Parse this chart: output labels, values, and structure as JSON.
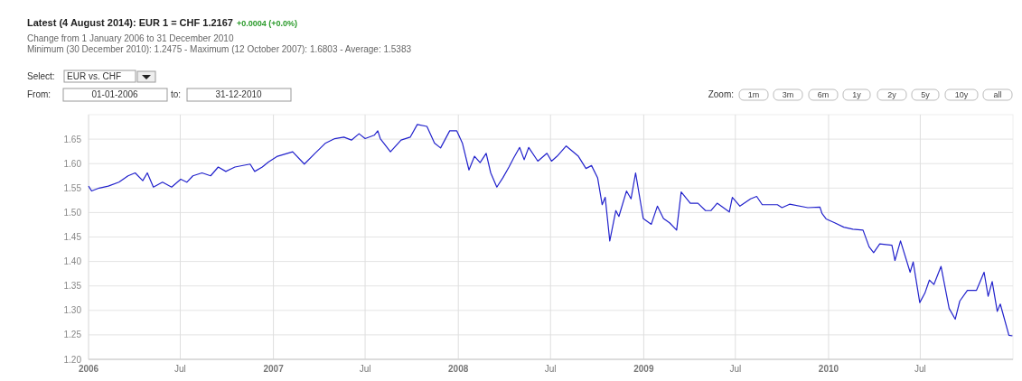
{
  "chart_data": {
    "type": "line",
    "title": "Latest (4 August 2014): EUR 1 = CHF 1.2167",
    "subtitle": "Change from 1 January 2006 to 31 December 2010",
    "annotations": [
      "+0.0004 (+0.0%)",
      "Minimum (30 December 2010): 1.2475 - Maximum (12 October 2007): 1.6803 - Average: 1.5383",
      "Select:",
      "EUR vs. CHF",
      "From:",
      "01-01-2006",
      "to:",
      "31-12-2010",
      "Zoom:",
      "1m",
      "3m",
      "6m",
      "1y",
      "2y",
      "5y",
      "10y",
      "all"
    ],
    "xlim": [
      "2006-01-01",
      "2010-12-31"
    ],
    "xticks": [
      {
        "value": "2006-01-01",
        "label": "2006"
      },
      {
        "value": "2006-07-01",
        "label": "Jul"
      },
      {
        "value": "2007-01-01",
        "label": "2007"
      },
      {
        "value": "2007-07-01",
        "label": "Jul"
      },
      {
        "value": "2008-01-01",
        "label": "2008"
      },
      {
        "value": "2008-07-01",
        "label": "Jul"
      },
      {
        "value": "2009-01-01",
        "label": "2009"
      },
      {
        "value": "2009-07-01",
        "label": "Jul"
      },
      {
        "value": "2010-01-01",
        "label": "2010"
      },
      {
        "value": "2010-07-01",
        "label": "Jul"
      }
    ],
    "ylim": [
      1.2,
      1.7
    ],
    "yticks": [
      {
        "value": 1.2,
        "label": "1.20"
      },
      {
        "value": 1.25,
        "label": "1.25"
      },
      {
        "value": 1.3,
        "label": "1.30"
      },
      {
        "value": 1.35,
        "label": "1.35"
      },
      {
        "value": 1.4,
        "label": "1.40"
      },
      {
        "value": 1.45,
        "label": "1.45"
      },
      {
        "value": 1.5,
        "label": "1.50"
      },
      {
        "value": 1.55,
        "label": "1.55"
      },
      {
        "value": 1.6,
        "label": "1.60"
      },
      {
        "value": 1.65,
        "label": "1.65"
      }
    ],
    "grid": true,
    "marker": "none",
    "line_style": "solid",
    "series": [
      {
        "color": "#2222cc",
        "x": [
          "2006-01-01",
          "2006-01-07",
          "2006-01-22",
          "2006-02-09",
          "2006-03-02",
          "2006-03-20",
          "2006-04-03",
          "2006-04-18",
          "2006-04-27",
          "2006-05-09",
          "2006-05-27",
          "2006-06-14",
          "2006-07-02",
          "2006-07-14",
          "2006-07-26",
          "2006-08-13",
          "2006-08-30",
          "2006-09-14",
          "2006-09-29",
          "2006-10-17",
          "2006-11-16",
          "2006-11-25",
          "2006-12-10",
          "2006-12-22",
          "2007-01-09",
          "2007-02-08",
          "2007-03-03",
          "2007-03-24",
          "2007-04-14",
          "2007-05-02",
          "2007-05-20",
          "2007-06-04",
          "2007-06-19",
          "2007-07-01",
          "2007-07-19",
          "2007-07-26",
          "2007-07-31",
          "2007-08-20",
          "2007-09-10",
          "2007-09-28",
          "2007-10-12",
          "2007-10-31",
          "2007-11-15",
          "2007-11-27",
          "2007-12-15",
          "2007-12-29",
          "2008-01-09",
          "2008-01-22",
          "2008-02-02",
          "2008-02-13",
          "2008-02-25",
          "2008-03-05",
          "2008-03-17",
          "2008-03-29",
          "2008-04-10",
          "2008-04-19",
          "2008-05-01",
          "2008-05-10",
          "2008-05-19",
          "2008-06-06",
          "2008-06-24",
          "2008-07-03",
          "2008-07-14",
          "2008-08-01",
          "2008-08-25",
          "2008-09-09",
          "2008-09-20",
          "2008-10-02",
          "2008-10-11",
          "2008-10-17",
          "2008-10-26",
          "2008-11-07",
          "2008-11-13",
          "2008-11-28",
          "2008-12-07",
          "2008-12-16",
          "2008-12-31",
          "2009-01-16",
          "2009-01-28",
          "2009-02-09",
          "2009-02-21",
          "2009-03-07",
          "2009-03-16",
          "2009-04-03",
          "2009-04-18",
          "2009-05-03",
          "2009-05-14",
          "2009-05-26",
          "2009-06-19",
          "2009-06-25",
          "2009-07-10",
          "2009-07-31",
          "2009-08-12",
          "2009-08-23",
          "2009-09-22",
          "2009-10-01",
          "2009-10-16",
          "2009-11-21",
          "2009-12-15",
          "2009-12-19",
          "2009-12-27",
          "2010-01-13",
          "2010-01-31",
          "2010-02-18",
          "2010-03-10",
          "2010-03-22",
          "2010-03-31",
          "2010-04-12",
          "2010-05-06",
          "2010-05-12",
          "2010-05-23",
          "2010-06-11",
          "2010-06-17",
          "2010-06-30",
          "2010-07-10",
          "2010-07-19",
          "2010-07-28",
          "2010-08-11",
          "2010-08-27",
          "2010-09-08",
          "2010-09-17",
          "2010-10-02",
          "2010-10-20",
          "2010-11-04",
          "2010-11-12",
          "2010-11-20",
          "2010-11-30",
          "2010-12-06",
          "2010-12-23",
          "2010-12-30"
        ],
        "values": [
          1.554,
          1.544,
          1.55,
          1.554,
          1.562,
          1.575,
          1.581,
          1.565,
          1.581,
          1.552,
          1.562,
          1.552,
          1.568,
          1.562,
          1.575,
          1.581,
          1.575,
          1.593,
          1.584,
          1.593,
          1.599,
          1.584,
          1.593,
          1.603,
          1.615,
          1.624,
          1.599,
          1.621,
          1.642,
          1.651,
          1.654,
          1.648,
          1.661,
          1.651,
          1.658,
          1.667,
          1.651,
          1.624,
          1.648,
          1.654,
          1.68,
          1.676,
          1.642,
          1.632,
          1.667,
          1.667,
          1.642,
          1.587,
          1.615,
          1.602,
          1.621,
          1.581,
          1.552,
          1.571,
          1.593,
          1.611,
          1.633,
          1.608,
          1.633,
          1.605,
          1.621,
          1.605,
          1.615,
          1.636,
          1.615,
          1.59,
          1.596,
          1.571,
          1.516,
          1.531,
          1.442,
          1.504,
          1.492,
          1.544,
          1.528,
          1.581,
          1.488,
          1.476,
          1.513,
          1.488,
          1.479,
          1.464,
          1.542,
          1.519,
          1.519,
          1.504,
          1.504,
          1.519,
          1.501,
          1.531,
          1.513,
          1.528,
          1.533,
          1.516,
          1.516,
          1.51,
          1.517,
          1.51,
          1.511,
          1.498,
          1.487,
          1.479,
          1.47,
          1.466,
          1.464,
          1.43,
          1.418,
          1.436,
          1.433,
          1.402,
          1.442,
          1.378,
          1.399,
          1.316,
          1.335,
          1.362,
          1.353,
          1.39,
          1.304,
          1.282,
          1.319,
          1.341,
          1.341,
          1.378,
          1.329,
          1.359,
          1.298,
          1.313,
          1.249,
          1.248
        ]
      }
    ]
  }
}
